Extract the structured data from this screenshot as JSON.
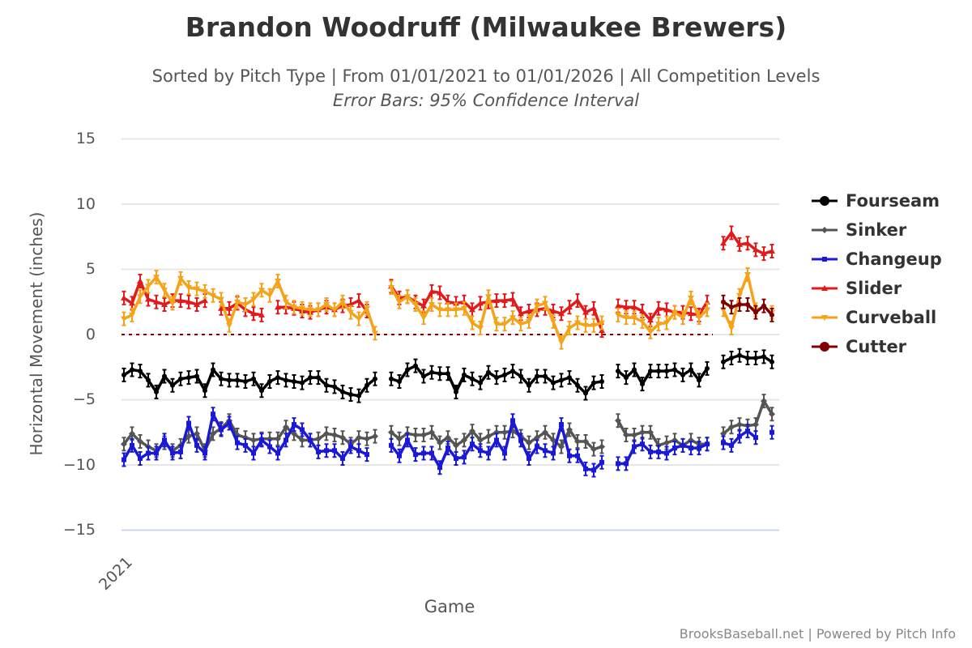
{
  "chart_data": {
    "type": "line",
    "title": "Brandon Woodruff (Milwaukee Brewers)",
    "subtitle": "Sorted by Pitch Type | From 01/01/2021 to 01/01/2026 | All Competition Levels",
    "subtitle2": "Error Bars: 95% Confidence Interval",
    "xlabel": "Game",
    "ylabel": "Horizontal Movement (inches)",
    "x_tick_labels": [
      "2021"
    ],
    "y_ticks": [
      "15",
      "10",
      "5",
      "0",
      "−5",
      "−10",
      "−15"
    ],
    "y_tick_values": [
      15,
      10,
      5,
      0,
      -5,
      -10,
      -15
    ],
    "ylim": [
      -15,
      15
    ],
    "grid": true,
    "legend_position": "right",
    "credit": "BrooksBaseball.net | Powered by Pitch Info",
    "series": [
      {
        "name": "Fourseam",
        "color": "#000000",
        "marker": "circle",
        "values": [
          -3.1,
          -2.7,
          -2.8,
          -3.5,
          -4.4,
          -3.2,
          -3.9,
          -3.4,
          -3.3,
          -3.2,
          -4.3,
          -2.7,
          -3.4,
          -3.5,
          -3.5,
          -3.6,
          -3.4,
          -4.3,
          -3.6,
          -3.3,
          -3.5,
          -3.6,
          -3.7,
          -3.3,
          -3.3,
          -3.9,
          -4.0,
          -4.4,
          -4.6,
          -4.7,
          -3.9,
          -3.4,
          null,
          -3.4,
          -3.6,
          -2.7,
          -2.4,
          -3.2,
          -2.9,
          -3.0,
          -3.0,
          -4.4,
          -3.1,
          -3.4,
          -3.7,
          -2.9,
          -3.3,
          -3.1,
          -2.8,
          -3.2,
          -3.9,
          -3.2,
          -3.2,
          -3.7,
          -3.5,
          -3.3,
          -3.9,
          -4.5,
          -3.7,
          -3.6,
          null,
          -2.8,
          -3.3,
          -2.7,
          -3.8,
          -2.8,
          -2.8,
          -2.8,
          -2.7,
          -3.1,
          -2.7,
          -3.5,
          -2.6,
          null,
          -2.1,
          -1.8,
          -1.6,
          -1.8,
          -1.8,
          -1.7,
          -2.1
        ]
      },
      {
        "name": "Sinker",
        "color": "#555555",
        "marker": "diamond",
        "values": [
          -8.4,
          -7.6,
          -8.2,
          -8.6,
          -8.9,
          -8.3,
          -8.9,
          -8.5,
          -7.8,
          -7.6,
          -8.9,
          -7.6,
          -7.2,
          -6.6,
          -7.7,
          -7.9,
          -8.1,
          -8.0,
          -8.0,
          -8.0,
          -7.1,
          -7.6,
          -8.1,
          -8.1,
          -8.0,
          -7.6,
          -7.7,
          -7.9,
          -8.4,
          -7.9,
          -8.0,
          -7.8,
          null,
          -7.5,
          -8.0,
          -7.6,
          -7.7,
          -7.7,
          -7.5,
          -8.3,
          -7.9,
          -8.5,
          -8.1,
          -7.4,
          -8.1,
          -7.8,
          -7.5,
          -7.5,
          -7.4,
          -7.8,
          -8.3,
          -7.9,
          -7.5,
          -8.1,
          -8.6,
          -7.3,
          -8.2,
          -8.2,
          -8.8,
          -8.6,
          null,
          -6.6,
          -7.7,
          -7.7,
          -7.5,
          -7.5,
          -8.5,
          -8.3,
          -8.1,
          -8.5,
          -8.1,
          -8.4,
          -8.4,
          null,
          -7.6,
          -7.1,
          -6.9,
          -7.0,
          -6.9,
          -5.1,
          -6.1
        ]
      },
      {
        "name": "Changeup",
        "color": "#1a1ad6",
        "marker": "square",
        "values": [
          -9.6,
          -8.5,
          -9.5,
          -9.1,
          -9.1,
          -8.1,
          -9.1,
          -9.0,
          -6.8,
          -8.5,
          -9.1,
          -6.1,
          -7.3,
          -6.8,
          -8.3,
          -8.5,
          -9.1,
          -8.1,
          -8.6,
          -9.1,
          -8.1,
          -6.9,
          -7.3,
          -8.1,
          -9.0,
          -8.9,
          -8.9,
          -9.5,
          -8.6,
          -8.9,
          -9.2,
          null,
          null,
          -8.5,
          -9.3,
          -8.1,
          -9.2,
          -9.1,
          -9.1,
          -10.2,
          -8.7,
          -9.5,
          -9.4,
          -8.4,
          -8.9,
          -9.1,
          -8.1,
          -9.1,
          -6.6,
          -8.1,
          -9.5,
          -8.6,
          -8.9,
          -9.1,
          -6.9,
          -9.3,
          -9.3,
          -10.3,
          -10.4,
          -9.8,
          null,
          -9.9,
          -9.9,
          -8.6,
          -8.4,
          -9.0,
          -9.0,
          -9.1,
          -8.7,
          -8.5,
          -8.7,
          -8.7,
          -8.4,
          null,
          -8.3,
          -8.5,
          -7.8,
          -7.4,
          -7.9,
          null,
          -7.5
        ]
      },
      {
        "name": "Slider",
        "color": "#e31a1c",
        "marker": "triangle-up",
        "values": [
          2.8,
          2.4,
          4.1,
          2.7,
          2.5,
          2.3,
          2.6,
          2.6,
          2.5,
          2.3,
          2.6,
          null,
          2.0,
          2.0,
          2.4,
          1.9,
          1.6,
          1.5,
          null,
          2.1,
          2.1,
          2.0,
          1.8,
          1.7,
          1.9,
          2.1,
          1.9,
          2.2,
          2.3,
          2.6,
          1.8,
          null,
          null,
          3.7,
          2.8,
          2.9,
          2.5,
          2.2,
          3.3,
          3.2,
          2.5,
          2.4,
          2.5,
          1.9,
          2.4,
          2.5,
          2.6,
          2.6,
          2.7,
          1.6,
          1.8,
          1.9,
          2.0,
          1.8,
          1.6,
          2.1,
          2.6,
          1.7,
          2.0,
          0.3,
          null,
          2.2,
          2.1,
          2.1,
          1.8,
          1.1,
          2.0,
          1.9,
          1.7,
          1.7,
          1.6,
          1.5,
          2.5,
          null,
          7.0,
          7.8,
          6.9,
          7.0,
          6.5,
          6.2,
          6.4
        ]
      },
      {
        "name": "Curveball",
        "color": "#f5a31a",
        "marker": "triangle-down",
        "values": [
          1.2,
          1.5,
          2.9,
          3.7,
          4.4,
          3.4,
          2.4,
          4.3,
          3.6,
          3.5,
          3.3,
          3.0,
          2.7,
          0.7,
          2.5,
          2.3,
          2.7,
          3.4,
          3.0,
          4.1,
          2.5,
          2.1,
          2.0,
          1.9,
          1.9,
          2.3,
          1.9,
          2.5,
          1.7,
          1.2,
          2.0,
          0.1,
          null,
          3.6,
          2.5,
          2.9,
          2.3,
          1.3,
          2.3,
          1.9,
          1.9,
          1.9,
          2.0,
          0.9,
          0.5,
          2.9,
          0.8,
          0.8,
          1.3,
          0.8,
          1.0,
          2.2,
          2.4,
          1.0,
          -0.6,
          0.5,
          0.9,
          0.7,
          0.7,
          0.9,
          null,
          1.5,
          1.3,
          1.3,
          1.0,
          0.2,
          0.8,
          0.9,
          1.7,
          1.3,
          2.8,
          1.3,
          1.9,
          null,
          1.9,
          0.5,
          3.0,
          4.6,
          1.9,
          null,
          1.7
        ]
      },
      {
        "name": "Cutter",
        "color": "#7f0000",
        "marker": "circle",
        "values": [
          null,
          null,
          null,
          null,
          null,
          null,
          null,
          null,
          null,
          null,
          null,
          null,
          null,
          null,
          null,
          null,
          null,
          null,
          null,
          null,
          null,
          null,
          null,
          null,
          null,
          null,
          null,
          null,
          null,
          null,
          null,
          null,
          null,
          null,
          null,
          null,
          null,
          null,
          null,
          null,
          null,
          null,
          null,
          null,
          null,
          null,
          null,
          null,
          null,
          null,
          null,
          null,
          null,
          null,
          null,
          null,
          null,
          null,
          null,
          null,
          null,
          null,
          null,
          null,
          null,
          null,
          null,
          null,
          null,
          null,
          null,
          null,
          null,
          null,
          2.5,
          2.1,
          2.3,
          2.3,
          1.7,
          2.2,
          1.5
        ]
      }
    ]
  }
}
